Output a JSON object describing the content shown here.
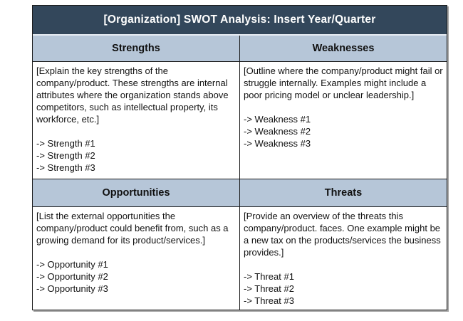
{
  "title_bar": {
    "text": "[Organization] SWOT Analysis: Insert Year/Quarter"
  },
  "quadrants": [
    {
      "header": "Strengths",
      "description": "[Explain the key strengths of the company/product. These strengths are internal attributes where the organization stands above competitors, such as intellectual property, its workforce, etc.]",
      "items": [
        "-> Strength #1",
        "-> Strength #2",
        "-> Strength #3"
      ]
    },
    {
      "header": "Weaknesses",
      "description": "[Outline where the company/product might fail or struggle internally. Examples might include a poor pricing model or unclear leadership.]",
      "items": [
        "-> Weakness #1",
        "-> Weakness #2",
        "-> Weakness #3"
      ]
    },
    {
      "header": "Opportunities",
      "description": "[List the external opportunities the company/product could benefit from, such as a growing demand for its product/services.]",
      "items": [
        "-> Opportunity #1",
        "-> Opportunity #2",
        "-> Opportunity #3"
      ]
    },
    {
      "header": "Threats",
      "description": "[Provide an overview of the threats this company/product. faces. One example might be a new tax on the products/services the business provides.]",
      "items": [
        "-> Threat #1",
        "-> Threat #2",
        "-> Threat #3"
      ]
    }
  ],
  "colors": {
    "title_bg": "#33475b",
    "title_text": "#ffffff",
    "header_bg": "#b6c6d8",
    "border": "#1c1c1c",
    "body_text": "#121212",
    "page_bg": "#ffffff"
  }
}
